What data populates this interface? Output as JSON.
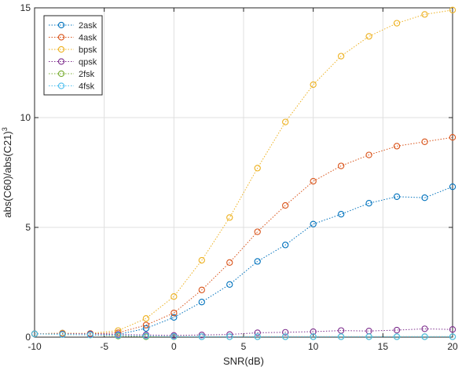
{
  "chart_data": {
    "type": "line",
    "title": "",
    "xlabel": "SNR(dB)",
    "ylabel_base": "abs(C60)/abs(C21)",
    "ylabel_exponent": "3",
    "xlim": [
      -10,
      20
    ],
    "ylim": [
      0,
      15
    ],
    "x_ticks": [
      -10,
      -5,
      0,
      5,
      10,
      15,
      20
    ],
    "y_ticks": [
      0,
      5,
      10,
      15
    ],
    "grid": true,
    "legend_position": "top-left",
    "x": [
      -10,
      -8,
      -6,
      -4,
      -2,
      0,
      2,
      4,
      6,
      8,
      10,
      12,
      14,
      16,
      18,
      20
    ],
    "series": [
      {
        "name": "2ask",
        "color": "#0072BD",
        "values": [
          0.15,
          0.18,
          0.15,
          0.12,
          0.4,
          0.9,
          1.6,
          2.4,
          3.45,
          4.2,
          5.15,
          5.6,
          6.1,
          6.4,
          6.35,
          6.85
        ]
      },
      {
        "name": "4ask",
        "color": "#D95319",
        "values": [
          0.15,
          0.18,
          0.15,
          0.2,
          0.55,
          1.1,
          2.15,
          3.4,
          4.8,
          6.0,
          7.1,
          7.8,
          8.3,
          8.7,
          8.9,
          9.1
        ]
      },
      {
        "name": "bpsk",
        "color": "#EDB120",
        "values": [
          0.15,
          0.18,
          0.17,
          0.3,
          0.85,
          1.85,
          3.5,
          5.45,
          7.7,
          9.8,
          11.5,
          12.8,
          13.7,
          14.3,
          14.7,
          14.9
        ]
      },
      {
        "name": "qpsk",
        "color": "#7E2F8E",
        "values": [
          0.15,
          0.15,
          0.15,
          0.12,
          0.1,
          0.08,
          0.1,
          0.12,
          0.2,
          0.22,
          0.25,
          0.3,
          0.28,
          0.32,
          0.38,
          0.35
        ]
      },
      {
        "name": "2fsk",
        "color": "#77AC30",
        "values": [
          0.15,
          0.12,
          0.1,
          0.05,
          0.02,
          0.02,
          0.02,
          0.02,
          0.02,
          0.02,
          0.02,
          0.02,
          0.02,
          0.02,
          0.02,
          0.02
        ]
      },
      {
        "name": "4fsk",
        "color": "#4DBEEE",
        "values": [
          0.15,
          0.12,
          0.1,
          0.08,
          0.05,
          0.03,
          0.02,
          0.02,
          0.02,
          0.02,
          0.02,
          0.02,
          0.02,
          0.02,
          0.02,
          0.02
        ]
      }
    ]
  }
}
